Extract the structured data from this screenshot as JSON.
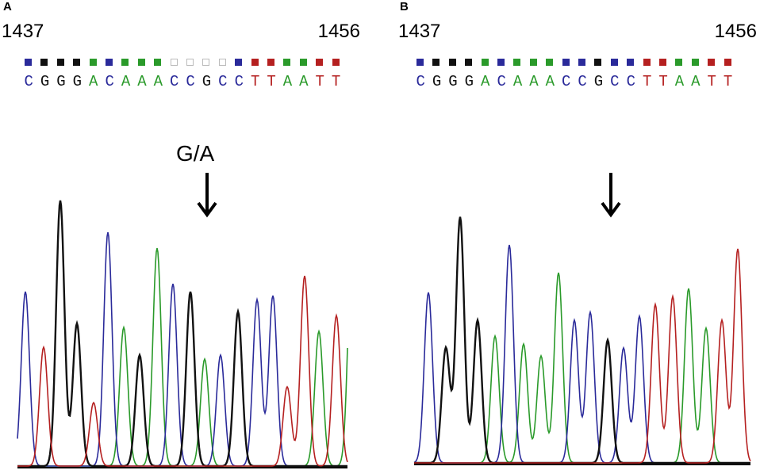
{
  "panels": [
    {
      "letter": "A",
      "start_pos": "1437",
      "end_pos": "1456",
      "sequence": [
        "C",
        "G",
        "G",
        "G",
        "A",
        "C",
        "A",
        "A",
        "A",
        "C",
        "C",
        "G",
        "C",
        "C",
        "T",
        "T",
        "A",
        "A",
        "T",
        "T"
      ],
      "mutation_label": "G/A",
      "has_arrow": true
    },
    {
      "letter": "B",
      "start_pos": "1437",
      "end_pos": "1456",
      "sequence": [
        "C",
        "G",
        "G",
        "G",
        "A",
        "C",
        "A",
        "A",
        "A",
        "C",
        "C",
        "G",
        "C",
        "C",
        "T",
        "T",
        "A",
        "A",
        "T",
        "T"
      ],
      "mutation_label": "",
      "has_arrow": true
    }
  ],
  "base_colors": {
    "A": "#2a9a2a",
    "C": "#2a2a9a",
    "G": "#111111",
    "T": "#b52020"
  }
}
